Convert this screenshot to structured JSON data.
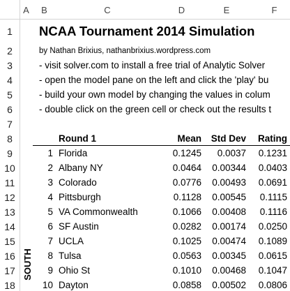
{
  "columns": [
    "A",
    "B",
    "C",
    "D",
    "E",
    "F"
  ],
  "rows": [
    "1",
    "2",
    "3",
    "4",
    "5",
    "6",
    "7",
    "8",
    "9",
    "10",
    "11",
    "12",
    "13",
    "14",
    "15",
    "16",
    "17",
    "18"
  ],
  "title": "NCAA Tournament 2014 Simulation",
  "byline": "by Nathan Brixius, nathanbrixius.wordpress.com",
  "notes": [
    "- visit solver.com to install a free trial of Analytic Solver",
    "- open the model pane on the left and click the 'play' bu",
    "- build your own model by changing the values in colum",
    "- double click on the green cell or check out the results t"
  ],
  "table": {
    "header": [
      "Round 1",
      "Mean",
      "Std Dev",
      "Rating"
    ],
    "rows": [
      [
        "1",
        "Florida",
        "0.1245",
        "0.0037",
        "0.1231"
      ],
      [
        "2",
        "Albany NY",
        "0.0464",
        "0.00344",
        "0.0403"
      ],
      [
        "3",
        "Colorado",
        "0.0776",
        "0.00493",
        "0.0691"
      ],
      [
        "4",
        "Pittsburgh",
        "0.1128",
        "0.00545",
        "0.1115"
      ],
      [
        "5",
        "VA Commonwealth",
        "0.1066",
        "0.00408",
        "0.1116"
      ],
      [
        "6",
        "SF Austin",
        "0.0282",
        "0.00174",
        "0.0250"
      ],
      [
        "7",
        "UCLA",
        "0.1025",
        "0.00474",
        "0.1089"
      ],
      [
        "8",
        "Tulsa",
        "0.0563",
        "0.00345",
        "0.0615"
      ],
      [
        "9",
        "Ohio St",
        "0.1010",
        "0.00468",
        "0.1047"
      ],
      [
        "10",
        "Dayton",
        "0.0858",
        "0.00502",
        "0.0806"
      ]
    ]
  },
  "region": "SOUTH"
}
